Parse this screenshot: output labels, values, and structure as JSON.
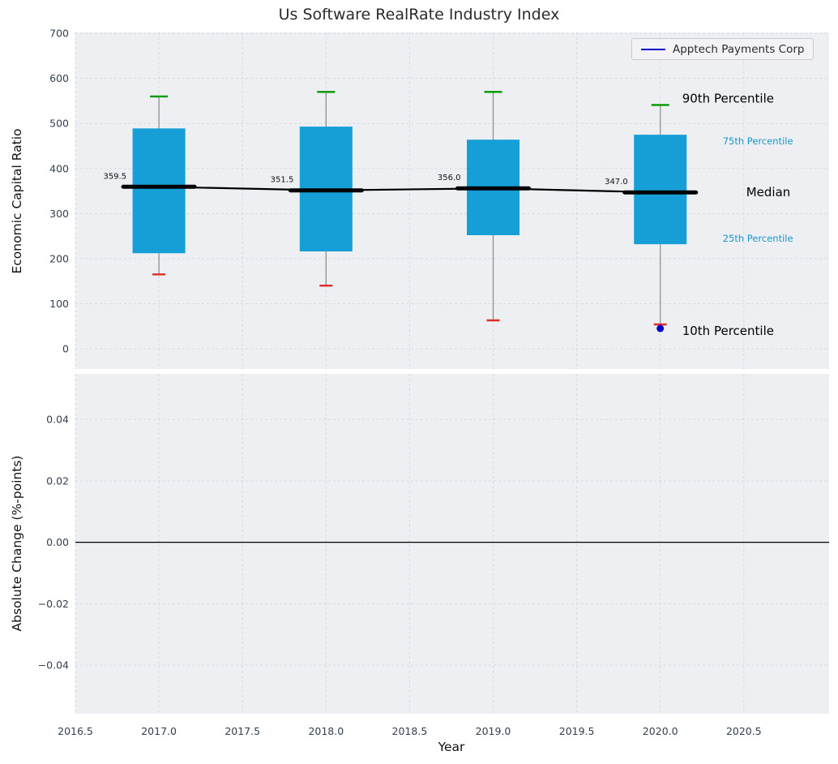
{
  "figure": {
    "title": "Us Software RealRate Industry Index",
    "xlabel": "Year",
    "legend_label": "Apptech Payments Corp"
  },
  "chart_data": {
    "type": "box",
    "title": "Us Software RealRate Industry Index",
    "xlabel": "Year",
    "legend": [
      {
        "label": "Apptech Payments Corp",
        "color": "#0000cc"
      }
    ],
    "x_axis": {
      "min": 2016.5,
      "max": 2021.01,
      "ticks": [
        {
          "v": 2016.5,
          "label": "2016.5"
        },
        {
          "v": 2017.0,
          "label": "2017.0"
        },
        {
          "v": 2017.5,
          "label": "2017.5"
        },
        {
          "v": 2018.0,
          "label": "2018.0"
        },
        {
          "v": 2018.5,
          "label": "2018.5"
        },
        {
          "v": 2019.0,
          "label": "2019.0"
        },
        {
          "v": 2019.5,
          "label": "2019.5"
        },
        {
          "v": 2020.0,
          "label": "2020.0"
        },
        {
          "v": 2020.5,
          "label": "2020.5"
        }
      ]
    },
    "top_panel": {
      "ylabel": "Economic Capital Ratio",
      "ymin": -45,
      "ymax": 702,
      "ticks": [
        {
          "v": 0,
          "label": "0"
        },
        {
          "v": 100,
          "label": "100"
        },
        {
          "v": 200,
          "label": "200"
        },
        {
          "v": 300,
          "label": "300"
        },
        {
          "v": 400,
          "label": "400"
        },
        {
          "v": 500,
          "label": "500"
        },
        {
          "v": 600,
          "label": "600"
        },
        {
          "v": 700,
          "label": "700"
        }
      ],
      "boxes": [
        {
          "year": 2017,
          "p10": 165,
          "p25": 212,
          "median": 359.5,
          "p75": 489,
          "p90": 560,
          "median_label": "359.5"
        },
        {
          "year": 2018,
          "p10": 140,
          "p25": 216,
          "median": 351.5,
          "p75": 493,
          "p90": 570,
          "median_label": "351.5"
        },
        {
          "year": 2019,
          "p10": 63,
          "p25": 252,
          "median": 356.0,
          "p75": 464,
          "p90": 570,
          "median_label": "356.0"
        },
        {
          "year": 2020,
          "p10": 54,
          "p25": 232,
          "median": 347.0,
          "p75": 475,
          "p90": 541,
          "median_label": "347.0"
        }
      ],
      "company_point": {
        "year": 2020,
        "value": 45
      },
      "annotations": {
        "p90": {
          "text": "90th Percentile",
          "color": "#000000",
          "size": 15
        },
        "p75": {
          "text": "75th Percentile",
          "color": "#1599cb",
          "size": 11.5
        },
        "median": {
          "text": "Median",
          "color": "#000000",
          "size": 15
        },
        "p25": {
          "text": "25th Percentile",
          "color": "#1599cb",
          "size": 11.5
        },
        "p10": {
          "text": "10th Percentile",
          "color": "#000000",
          "size": 15
        }
      }
    },
    "bottom_panel": {
      "ylabel": "Absolute Change (%-points)",
      "ymin": -0.0558,
      "ymax": 0.0548,
      "zero_line": 0,
      "ticks": [
        {
          "v": 0.04,
          "label": "0.04"
        },
        {
          "v": 0.02,
          "label": "0.02"
        },
        {
          "v": 0,
          "label": "0.00"
        },
        {
          "v": -0.02,
          "label": "−0.02"
        },
        {
          "v": -0.04,
          "label": "−0.04"
        }
      ]
    },
    "colors": {
      "panel_bg": "#edeff3",
      "grid": "#d6dade",
      "tick": "#333f4f",
      "box": "#169fd6",
      "p90_cap": "#009900",
      "p10_cap": "#e02b2b",
      "whisker": "#8a8a8a",
      "median": "#000000",
      "company": "#0000cc"
    }
  }
}
